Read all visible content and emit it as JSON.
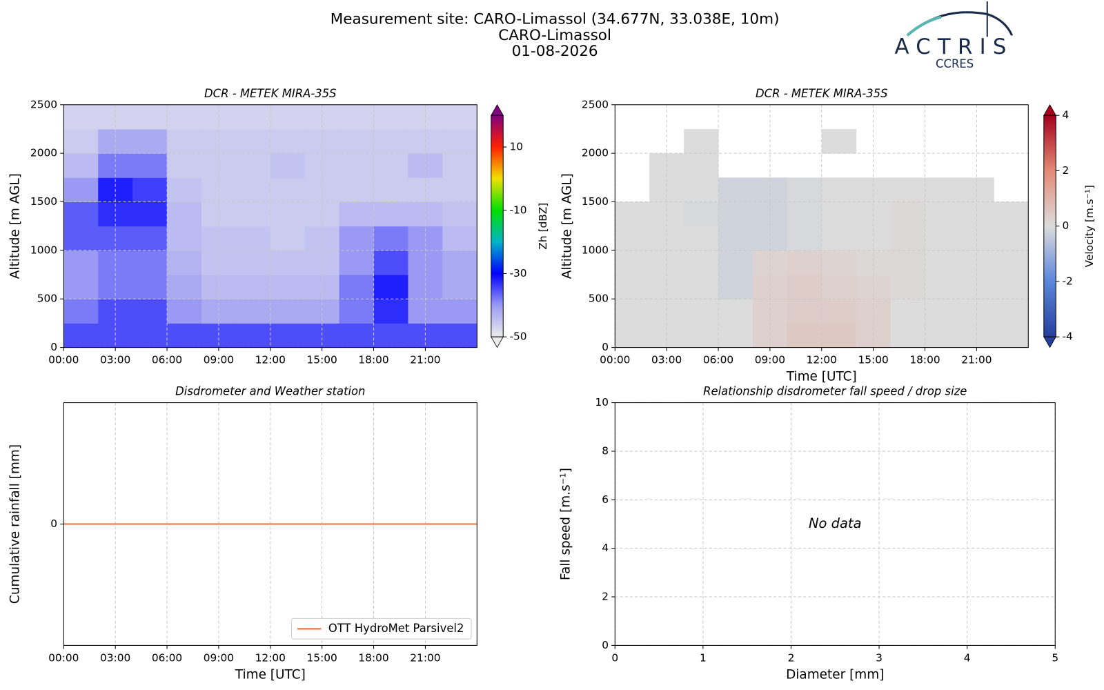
{
  "figure": {
    "title": [
      "Measurement site: CARO-Limassol (34.677N, 33.038E, 10m)",
      "CARO-Limassol",
      "01-08-2026"
    ],
    "logo": {
      "text": "ACTRIS",
      "subtext": "CCRES"
    }
  },
  "chart_data": [
    {
      "type": "heatmap",
      "title": "DCR - METEK MIRA-35S",
      "y_label": "Altitude [m AGL]",
      "xlim": [
        0,
        24
      ],
      "xticks": [
        {
          "value": 0,
          "label": "00:00"
        },
        {
          "value": 3,
          "label": "03:00"
        },
        {
          "value": 6,
          "label": "06:00"
        },
        {
          "value": 9,
          "label": "09:00"
        },
        {
          "value": 12,
          "label": "12:00"
        },
        {
          "value": 15,
          "label": "15:00"
        },
        {
          "value": 18,
          "label": "18:00"
        },
        {
          "value": 21,
          "label": "21:00"
        }
      ],
      "ylim": [
        0,
        2500
      ],
      "yticks": [
        0,
        500,
        1000,
        1500,
        2000,
        2500
      ],
      "grid": true,
      "xbins": [
        0,
        2,
        4,
        6,
        8,
        10,
        12,
        14,
        16,
        18,
        20,
        22,
        24
      ],
      "ybins": [
        0,
        250,
        500,
        750,
        1000,
        1250,
        1500,
        1750,
        2000,
        2250,
        2500
      ],
      "z": [
        [
          -35,
          -35,
          -35,
          -35,
          -35,
          -35,
          -35,
          -35,
          -35,
          -35,
          -35,
          -35
        ],
        [
          -38,
          -35,
          -35,
          -40,
          -42,
          -42,
          -42,
          -42,
          -38,
          -33,
          -40,
          -40
        ],
        [
          -40,
          -38,
          -38,
          -42,
          -44,
          -44,
          -44,
          -44,
          -38,
          -32,
          -40,
          -42
        ],
        [
          -40,
          -38,
          -38,
          -43,
          -45,
          -45,
          -45,
          -45,
          -40,
          -35,
          -40,
          -42
        ],
        [
          -36,
          -36,
          -36,
          -44,
          -45,
          -45,
          -46,
          -45,
          -40,
          -38,
          -40,
          -44
        ],
        [
          -36,
          -33,
          -33,
          -44,
          -46,
          -46,
          -46,
          -46,
          -44,
          -44,
          -44,
          -45
        ],
        [
          -40,
          -32,
          -34,
          -45,
          -46,
          -46,
          -46,
          -46,
          -46,
          -46,
          -46,
          -46
        ],
        [
          -44,
          -38,
          -38,
          -46,
          -46,
          -46,
          -45,
          -46,
          -46,
          -46,
          -44,
          -46
        ],
        [
          -46,
          -42,
          -42,
          -46,
          -46,
          -46,
          -46,
          -46,
          -46,
          -46,
          -46,
          -46
        ],
        [
          -47,
          -47,
          -47,
          -47,
          -47,
          -47,
          -47,
          -47,
          -47,
          -47,
          -47,
          -47
        ]
      ],
      "colorbar": {
        "label": "Zh [dBZ]",
        "lim": [
          -50,
          20
        ],
        "ticks": [
          -50,
          -30,
          -10,
          10
        ],
        "colormap": [
          "#ececec",
          "#9a9af5",
          "#0000ff",
          "#00b4c8",
          "#00e000",
          "#f0e000",
          "#ff2000",
          "#800080"
        ]
      }
    },
    {
      "type": "heatmap",
      "title": "DCR - METEK MIRA-35S",
      "y_label": "Altitude [m AGL]",
      "x_label": "Time [UTC]",
      "xlim": [
        0,
        24
      ],
      "xticks": [
        {
          "value": 0,
          "label": "00:00"
        },
        {
          "value": 3,
          "label": "03:00"
        },
        {
          "value": 6,
          "label": "06:00"
        },
        {
          "value": 9,
          "label": "09:00"
        },
        {
          "value": 12,
          "label": "12:00"
        },
        {
          "value": 15,
          "label": "15:00"
        },
        {
          "value": 18,
          "label": "18:00"
        },
        {
          "value": 21,
          "label": "21:00"
        }
      ],
      "ylim": [
        0,
        2500
      ],
      "yticks": [
        0,
        500,
        1000,
        1500,
        2000,
        2500
      ],
      "grid": true,
      "xbins": [
        0,
        2,
        4,
        6,
        8,
        10,
        12,
        14,
        16,
        18,
        20,
        22,
        24
      ],
      "ybins": [
        0,
        250,
        500,
        750,
        1000,
        1250,
        1500,
        1750,
        2000,
        2250,
        2500
      ],
      "z": [
        [
          0,
          0,
          0,
          0,
          0.3,
          0.5,
          0.5,
          0.3,
          0,
          0,
          0,
          0
        ],
        [
          0,
          0,
          0,
          0,
          0.3,
          0.4,
          0.4,
          0.3,
          0,
          0,
          0,
          0
        ],
        [
          0,
          0,
          0,
          -0.2,
          0.3,
          0.4,
          0.3,
          0.2,
          0.1,
          0,
          0,
          0
        ],
        [
          0,
          0,
          0,
          -0.2,
          0.2,
          0.3,
          0.2,
          0.1,
          0.1,
          0,
          0,
          0
        ],
        [
          0,
          0,
          0,
          -0.2,
          -0.2,
          -0.1,
          0,
          0,
          0.1,
          0,
          0,
          0
        ],
        [
          0,
          0,
          -0.1,
          -0.2,
          -0.2,
          -0.1,
          0,
          0,
          0.1,
          0,
          0,
          0
        ],
        [
          null,
          0,
          0,
          -0.2,
          -0.2,
          -0.1,
          0,
          0,
          0,
          0,
          0,
          null
        ],
        [
          null,
          0,
          0,
          null,
          null,
          null,
          null,
          null,
          null,
          null,
          null,
          null
        ],
        [
          null,
          null,
          0,
          null,
          null,
          null,
          0,
          null,
          null,
          null,
          null,
          null
        ],
        [
          null,
          null,
          null,
          null,
          null,
          null,
          null,
          null,
          null,
          null,
          null,
          null
        ]
      ],
      "colorbar": {
        "label": "Velocity [m.s⁻¹]",
        "lim": [
          -4,
          4
        ],
        "ticks": [
          -4,
          -2,
          0,
          2,
          4
        ],
        "colormap": [
          "#263e9e",
          "#5b86dc",
          "#dcdcdc",
          "#e38a75",
          "#a5001c"
        ]
      }
    },
    {
      "type": "line",
      "title": "Disdrometer and Weather station",
      "y_label": "Cumulative rainfall [mm]",
      "x_label": "Time [UTC]",
      "xlim": [
        0,
        24
      ],
      "xticks": [
        {
          "value": 0,
          "label": "00:00"
        },
        {
          "value": 3,
          "label": "03:00"
        },
        {
          "value": 6,
          "label": "06:00"
        },
        {
          "value": 9,
          "label": "09:00"
        },
        {
          "value": 12,
          "label": "12:00"
        },
        {
          "value": 15,
          "label": "15:00"
        },
        {
          "value": 18,
          "label": "18:00"
        },
        {
          "value": 21,
          "label": "21:00"
        }
      ],
      "ylim": [
        -0.05,
        0.05
      ],
      "yticks": [
        0
      ],
      "grid": true,
      "legend": "lower right",
      "series": [
        {
          "name": "OTT HydroMet Parsivel2",
          "color": "#f08c5a",
          "x": [
            0,
            24
          ],
          "values": [
            0,
            0
          ]
        }
      ]
    },
    {
      "type": "scatter",
      "title": "Relationship disdrometer fall speed / drop size",
      "y_label": "Fall speed [m.s⁻¹]",
      "x_label": "Diameter [mm]",
      "xlim": [
        0,
        5
      ],
      "xticks": [
        0,
        1,
        2,
        3,
        4,
        5
      ],
      "ylim": [
        0,
        10
      ],
      "yticks": [
        0,
        2,
        4,
        6,
        8,
        10
      ],
      "grid": true,
      "annotation": "No data"
    }
  ]
}
